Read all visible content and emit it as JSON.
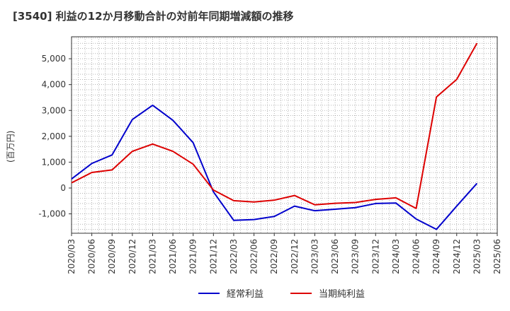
{
  "chart_data": {
    "type": "line",
    "title": "[3540]  利益の12か月移動合計の対前年同期増減額の推移",
    "ylabel": "(百万円)",
    "xlabel": "",
    "ylim": [
      -1750,
      5850
    ],
    "yticks": [
      -1000,
      0,
      1000,
      2000,
      3000,
      4000,
      5000
    ],
    "ytick_labels": [
      "-1,000",
      "0",
      "1,000",
      "2,000",
      "3,000",
      "4,000",
      "5,000"
    ],
    "categories": [
      "2020/03",
      "2020/06",
      "2020/09",
      "2020/12",
      "2021/03",
      "2021/06",
      "2021/09",
      "2021/12",
      "2022/03",
      "2022/06",
      "2022/09",
      "2022/12",
      "2023/03",
      "2023/06",
      "2023/09",
      "2023/12",
      "2024/03",
      "2024/06",
      "2024/09",
      "2024/12",
      "2025/03",
      "2025/06"
    ],
    "series": [
      {
        "name": "経常利益",
        "color": "#0000cc",
        "values": [
          350,
          950,
          1280,
          2650,
          3200,
          2620,
          1750,
          -150,
          -1250,
          -1220,
          -1100,
          -700,
          -880,
          -820,
          -760,
          -600,
          -580,
          -1200,
          -1600,
          -700,
          180,
          null
        ]
      },
      {
        "name": "当期純利益",
        "color": "#dd0000",
        "values": [
          200,
          600,
          700,
          1420,
          1700,
          1420,
          920,
          -80,
          -490,
          -540,
          -470,
          -290,
          -650,
          -590,
          -560,
          -440,
          -380,
          -790,
          3520,
          4200,
          5600,
          null
        ]
      }
    ],
    "legend_position": "bottom-center",
    "grid": true
  }
}
